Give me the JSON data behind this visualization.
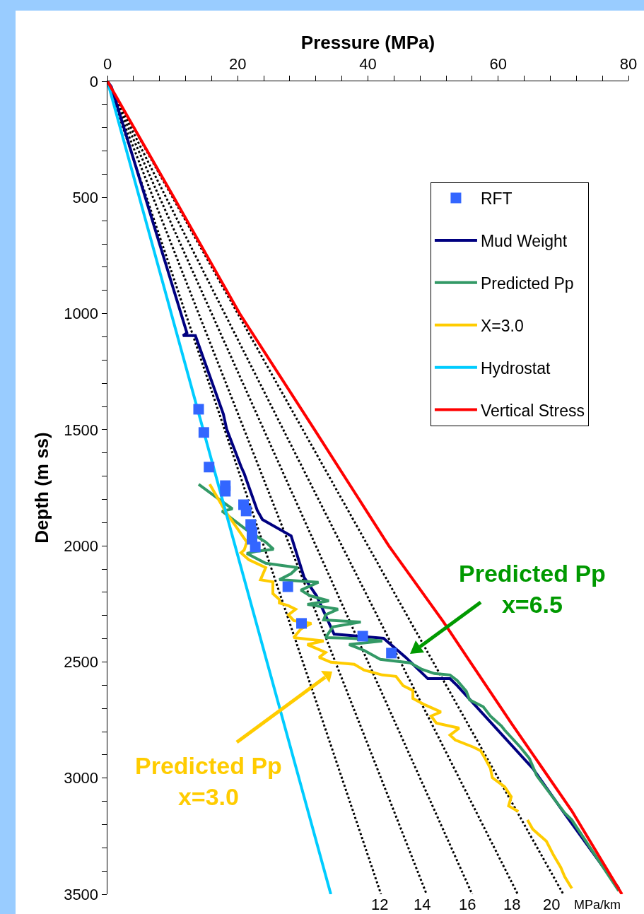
{
  "chart_data": {
    "type": "line",
    "xlabel": "Pressure (MPa)",
    "ylabel": "Depth (m ss)",
    "xlim": [
      0,
      80
    ],
    "ylim": [
      3500,
      0
    ],
    "xticks": [
      0,
      {
        "value": 4,
        "label": null
      },
      {
        "value": 8,
        "label": null
      },
      {
        "value": 12,
        "label": null
      },
      {
        "value": 16,
        "label": null
      },
      20,
      {
        "value": 24,
        "label": null
      },
      {
        "value": 28,
        "label": null
      },
      {
        "value": 32,
        "label": null
      },
      {
        "value": 36,
        "label": null
      },
      40,
      {
        "value": 44,
        "label": null
      },
      {
        "value": 48,
        "label": null
      },
      {
        "value": 52,
        "label": null
      },
      {
        "value": 56,
        "label": null
      },
      60,
      {
        "value": 64,
        "label": null
      },
      {
        "value": 68,
        "label": null
      },
      {
        "value": 72,
        "label": null
      },
      {
        "value": 76,
        "label": null
      },
      80
    ],
    "yticks": [
      0,
      {
        "value": 100,
        "label": null
      },
      {
        "value": 200,
        "label": null
      },
      {
        "value": 300,
        "label": null
      },
      {
        "value": 400,
        "label": null
      },
      500,
      {
        "value": 600,
        "label": null
      },
      {
        "value": 700,
        "label": null
      },
      {
        "value": 800,
        "label": null
      },
      {
        "value": 900,
        "label": null
      },
      1000,
      {
        "value": 1100,
        "label": null
      },
      {
        "value": 1200,
        "label": null
      },
      {
        "value": 1300,
        "label": null
      },
      {
        "value": 1400,
        "label": null
      },
      1500,
      {
        "value": 1600,
        "label": null
      },
      {
        "value": 1700,
        "label": null
      },
      {
        "value": 1800,
        "label": null
      },
      {
        "value": 1900,
        "label": null
      },
      2000,
      {
        "value": 2100,
        "label": null
      },
      {
        "value": 2200,
        "label": null
      },
      {
        "value": 2300,
        "label": null
      },
      {
        "value": 2400,
        "label": null
      },
      2500,
      {
        "value": 2600,
        "label": null
      },
      {
        "value": 2700,
        "label": null
      },
      {
        "value": 2800,
        "label": null
      },
      {
        "value": 2900,
        "label": null
      },
      3000,
      {
        "value": 3100,
        "label": null
      },
      {
        "value": 3200,
        "label": null
      },
      {
        "value": 3300,
        "label": null
      },
      {
        "value": 3400,
        "label": null
      },
      3500
    ],
    "grid": false,
    "legend": "top right",
    "series": [
      {
        "name": "RFT",
        "type": "scatter",
        "marker": "square",
        "color": "#3366ff",
        "x": [
          14.0,
          14.8,
          15.6,
          18.1,
          18.1,
          20.9,
          21.3,
          22.0,
          22.2,
          22.2,
          22.7,
          27.7,
          29.8,
          39.2,
          43.6
        ],
        "values": [
          1412,
          1512,
          1661,
          1741,
          1765,
          1823,
          1850,
          1908,
          1941,
          1972,
          2005,
          2176,
          2334,
          2389,
          2462
        ]
      },
      {
        "name": "Mud Weight",
        "line_style": "solid",
        "color": "#000080",
        "x": [
          0,
          0.6,
          12.2,
          11.6,
          13.5,
          17.8,
          18.3,
          20.5,
          21.0,
          23.0,
          23.8,
          28.2,
          30.2,
          32.1,
          34.8,
          42.4,
          45.8,
          49.2,
          52.6,
          53.7,
          65.3,
          69.9,
          78.5
        ],
        "values": [
          0,
          24,
          1083,
          1095,
          1095,
          1433,
          1497,
          1658,
          1689,
          1847,
          1887,
          1957,
          2136,
          2215,
          2380,
          2398,
          2480,
          2572,
          2572,
          2602,
          2958,
          3141,
          3475
        ]
      },
      {
        "name": "Predicted Pp",
        "line_style": "solid",
        "color": "#339966",
        "x": [
          14.0,
          17.4,
          19.2,
          17.6,
          21.4,
          24.3,
          25.5,
          22.8,
          21.4,
          24.3,
          29.2,
          28.2,
          26.4,
          32.4,
          29.7,
          31.1,
          34.0,
          30.7,
          35.4,
          33.5,
          33.2,
          38.9,
          34.6,
          33.5,
          37.5,
          42.2,
          37.1,
          39.4,
          41.9,
          46.5,
          48.3,
          50.2,
          52.6,
          53.7,
          55.1,
          55.6,
          57.7,
          58.8,
          60.5,
          61.0,
          63.4,
          64.8,
          65.9,
          68.8,
          70.2,
          71.3,
          78.5
        ],
        "values": [
          1735,
          1805,
          1841,
          1851,
          1932,
          1984,
          2015,
          2024,
          2033,
          2075,
          2094,
          2120,
          2146,
          2157,
          2191,
          2215,
          2237,
          2252,
          2273,
          2297,
          2319,
          2328,
          2349,
          2395,
          2398,
          2410,
          2425,
          2450,
          2489,
          2504,
          2532,
          2550,
          2556,
          2580,
          2626,
          2663,
          2693,
          2733,
          2776,
          2794,
          2867,
          2916,
          2989,
          3098,
          3150,
          3180,
          3485
        ]
      },
      {
        "name": "X=3.0",
        "line_style": "solid",
        "color": "#ffcc00",
        "x": [
          15.7,
          18.1,
          21.4,
          21.0,
          20.5,
          21.7,
          24.3,
          23.5,
          25.4,
          25.4,
          26.4,
          26.4,
          27.8,
          28.9,
          27.8,
          28.6,
          31.3,
          29.7,
          28.6,
          33.2,
          30.7,
          33.5,
          32.5,
          34.3,
          37.9,
          39.4,
          42.2,
          44.3,
          45.4,
          46.9,
          46.9,
          48.7,
          51.2,
          49.7,
          50.5,
          54.0,
          52.6,
          53.4,
          56.2,
          57.3,
          58.0,
          58.8,
          59.1,
          61.0,
          62.0,
          61.6,
          63.1,
          null,
          64.5,
          65.3,
          67.4,
          68.5,
          69.6,
          70.2,
          71.3
        ],
        "values": [
          1735,
          1851,
          1984,
          2018,
          2030,
          2060,
          2094,
          2146,
          2155,
          2206,
          2231,
          2246,
          2258,
          2273,
          2297,
          2322,
          2334,
          2358,
          2395,
          2410,
          2425,
          2459,
          2480,
          2501,
          2510,
          2535,
          2556,
          2562,
          2602,
          2623,
          2657,
          2684,
          2715,
          2733,
          2763,
          2785,
          2815,
          2836,
          2867,
          2882,
          2916,
          2958,
          2998,
          3038,
          3080,
          3120,
          3144,
          null,
          3180,
          3220,
          3272,
          3332,
          3384,
          3424,
          3475
        ]
      },
      {
        "name": "Hydrostat",
        "line_style": "solid",
        "color": "#00ccff",
        "x": [
          0,
          34.3
        ],
        "values": [
          0,
          3500
        ]
      },
      {
        "name": "Vertical Stress",
        "line_style": "solid",
        "color": "#ff0000",
        "x": [
          0,
          10.2,
          20.3,
          31.8,
          43.2,
          51.6,
          55.7,
          62.0,
          71.3,
          79.0
        ],
        "values": [
          0,
          500,
          1000,
          1500,
          2000,
          2328,
          2500,
          2763,
          3141,
          3500
        ]
      },
      {
        "line_style": "dotted",
        "color": "#000000",
        "x": [
          0,
          42
        ],
        "values": [
          0,
          3500
        ]
      },
      {
        "line_style": "dotted",
        "color": "#000000",
        "x": [
          0,
          49
        ],
        "values": [
          0,
          3500
        ]
      },
      {
        "line_style": "dotted",
        "color": "#000000",
        "x": [
          0,
          56
        ],
        "values": [
          0,
          3500
        ]
      },
      {
        "line_style": "dotted",
        "color": "#000000",
        "x": [
          0,
          63
        ],
        "values": [
          0,
          3500
        ]
      },
      {
        "line_style": "dotted",
        "color": "#000000",
        "x": [
          0,
          70
        ],
        "values": [
          0,
          3500
        ]
      }
    ],
    "annotations": [
      "Predicted Pp\nx=6.5",
      "Predicted Pp\nx=3.0",
      "12",
      "14",
      "16",
      "18",
      "20",
      "MPa/km"
    ]
  }
}
